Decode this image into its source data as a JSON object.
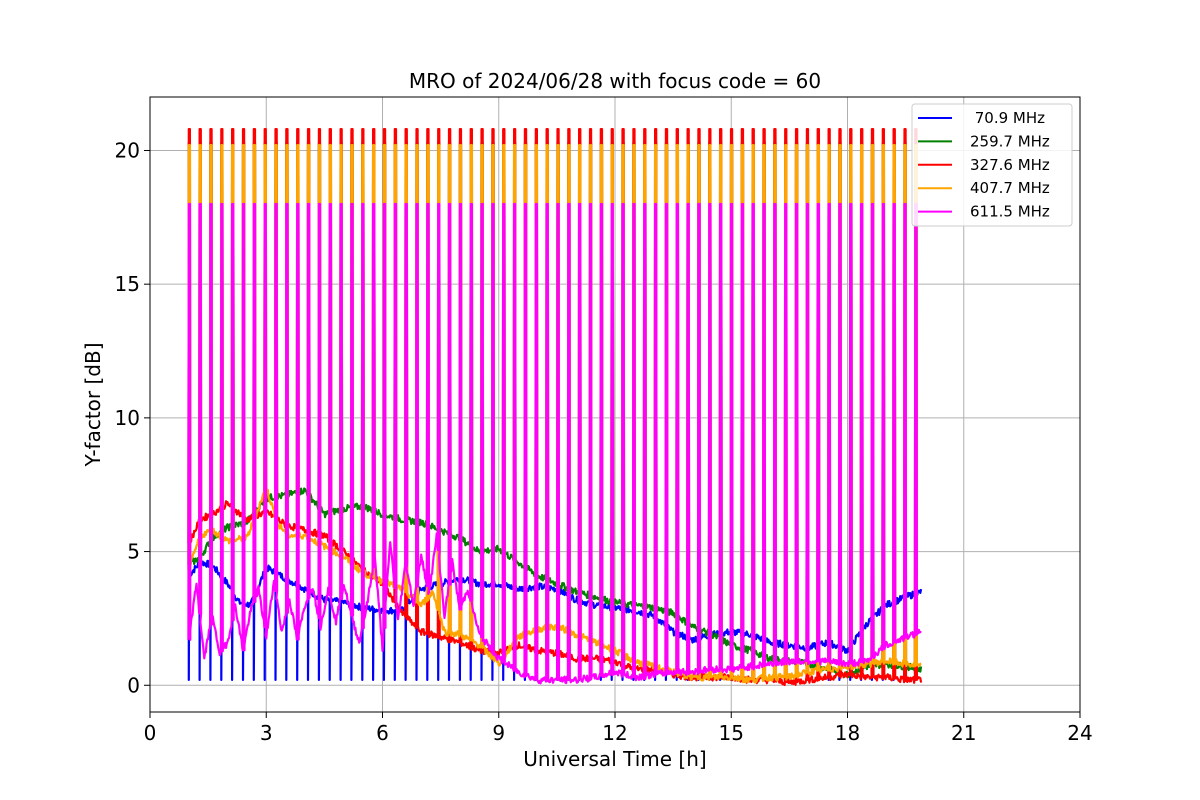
{
  "chart_data": {
    "type": "line",
    "title": "MRO of 2024/06/28 with focus code = 60",
    "xlabel": "Universal Time [h]",
    "ylabel": "Y-factor [dB]",
    "xlim": [
      0,
      24
    ],
    "ylim": [
      -1,
      22
    ],
    "xticks": [
      "0",
      "3",
      "6",
      "9",
      "12",
      "15",
      "18",
      "21",
      "24"
    ],
    "yticks": [
      "0",
      "5",
      "10",
      "15",
      "20"
    ],
    "xtick_values": [
      0,
      3,
      6,
      9,
      12,
      15,
      18,
      21,
      24
    ],
    "ytick_values": [
      0,
      5,
      10,
      15,
      20
    ],
    "grid": true,
    "legend_position": "top-right",
    "calibration_spikes": {
      "start": 1.0,
      "end": 19.75,
      "count": 68,
      "peaks": {
        "70.9 MHz": 2.7,
        "259.7 MHz": 20.3,
        "327.6 MHz": 20.8,
        "407.7 MHz": 20.2,
        "611.5 MHz": 18.0
      }
    },
    "series": [
      {
        "name": " 70.9 MHz",
        "color": "#0000ff",
        "x": [
          1.0,
          1.3,
          1.6,
          2.0,
          2.3,
          2.6,
          3.0,
          3.5,
          4.0,
          4.5,
          5.0,
          5.5,
          6.0,
          6.5,
          7.0,
          7.5,
          8.0,
          8.5,
          9.0,
          9.5,
          10.0,
          10.5,
          11.0,
          11.5,
          12.0,
          12.5,
          13.0,
          13.5,
          14.0,
          14.5,
          15.0,
          15.5,
          16.0,
          16.5,
          17.0,
          17.5,
          18.0,
          18.5,
          19.0,
          19.5,
          19.9
        ],
        "y": [
          4.1,
          4.6,
          4.5,
          3.8,
          3.1,
          3.0,
          4.4,
          4.0,
          3.6,
          3.2,
          3.1,
          2.9,
          2.8,
          2.8,
          3.6,
          3.8,
          4.0,
          3.8,
          3.8,
          3.6,
          3.7,
          3.6,
          3.2,
          3.0,
          2.9,
          2.8,
          2.6,
          2.0,
          1.7,
          1.9,
          2.0,
          1.9,
          1.6,
          1.5,
          1.4,
          1.6,
          1.3,
          2.3,
          3.0,
          3.3,
          3.5
        ]
      },
      {
        "name": "259.7 MHz",
        "color": "#008000",
        "x": [
          1.0,
          1.3,
          1.6,
          2.0,
          2.5,
          3.0,
          3.5,
          4.0,
          4.5,
          5.0,
          5.5,
          6.0,
          6.5,
          7.0,
          7.5,
          8.0,
          8.5,
          9.0,
          9.5,
          10.0,
          10.5,
          11.0,
          11.5,
          12.0,
          12.5,
          13.0,
          13.5,
          14.0,
          14.5,
          15.0,
          15.5,
          16.0,
          16.5,
          17.0,
          17.5,
          18.0,
          18.5,
          19.0,
          19.5,
          19.9
        ],
        "y": [
          4.5,
          4.8,
          5.5,
          5.9,
          6.1,
          7.0,
          7.1,
          7.3,
          6.4,
          6.6,
          6.7,
          6.4,
          6.2,
          6.1,
          5.8,
          5.5,
          5.0,
          5.1,
          4.6,
          4.1,
          3.8,
          3.5,
          3.3,
          3.1,
          3.0,
          2.9,
          2.7,
          2.2,
          1.9,
          1.5,
          1.3,
          1.0,
          0.9,
          0.8,
          0.6,
          0.4,
          0.7,
          0.8,
          0.7,
          0.6
        ]
      },
      {
        "name": "327.6 MHz",
        "color": "#ff0000",
        "x": [
          1.0,
          1.3,
          1.6,
          2.0,
          2.5,
          3.0,
          3.5,
          4.0,
          4.5,
          5.0,
          5.5,
          6.0,
          6.5,
          7.0,
          7.5,
          8.0,
          8.5,
          9.0,
          9.5,
          10.0,
          10.5,
          11.0,
          11.5,
          12.0,
          12.5,
          13.0,
          13.5,
          14.0,
          14.5,
          15.0,
          15.5,
          16.0,
          16.5,
          17.0,
          17.5,
          18.0,
          18.5,
          19.0,
          19.5,
          19.9
        ],
        "y": [
          5.3,
          6.2,
          6.4,
          6.8,
          6.2,
          6.5,
          6.0,
          5.8,
          5.6,
          5.0,
          4.3,
          3.8,
          2.7,
          2.0,
          1.8,
          1.6,
          1.3,
          1.2,
          1.5,
          1.3,
          1.2,
          1.0,
          1.0,
          0.9,
          0.6,
          0.6,
          0.4,
          0.3,
          0.3,
          0.3,
          0.2,
          0.2,
          0.1,
          0.2,
          0.3,
          0.4,
          0.3,
          0.3,
          0.2,
          0.2
        ]
      },
      {
        "name": "407.7 MHz",
        "color": "#ffa500",
        "x": [
          1.0,
          1.3,
          1.6,
          2.0,
          2.5,
          3.0,
          3.3,
          3.6,
          4.0,
          4.5,
          5.0,
          5.5,
          6.0,
          6.5,
          7.0,
          7.3,
          7.6,
          8.0,
          8.5,
          9.0,
          9.5,
          10.0,
          10.5,
          11.0,
          11.5,
          12.0,
          12.5,
          13.0,
          13.5,
          14.0,
          14.5,
          15.0,
          15.5,
          16.0,
          16.5,
          17.0,
          17.5,
          18.0,
          18.5,
          19.0,
          19.5,
          19.9
        ],
        "y": [
          4.3,
          5.6,
          5.8,
          5.4,
          5.5,
          7.4,
          6.0,
          5.6,
          5.6,
          5.2,
          4.8,
          4.2,
          3.9,
          3.6,
          3.0,
          3.5,
          2.0,
          1.9,
          1.5,
          0.8,
          1.8,
          2.1,
          2.2,
          1.9,
          1.6,
          1.3,
          0.9,
          0.7,
          0.5,
          0.3,
          0.3,
          0.3,
          0.2,
          0.3,
          0.3,
          0.5,
          0.6,
          0.7,
          0.8,
          0.9,
          0.8,
          0.7
        ]
      },
      {
        "name": "611.5 MHz",
        "color": "#ff00ff",
        "x": [
          1.0,
          1.2,
          1.4,
          1.6,
          1.8,
          2.0,
          2.2,
          2.4,
          2.6,
          2.8,
          3.0,
          3.2,
          3.4,
          3.6,
          3.8,
          4.0,
          4.2,
          4.4,
          4.6,
          4.8,
          5.0,
          5.2,
          5.4,
          5.6,
          5.8,
          6.0,
          6.2,
          6.4,
          6.6,
          6.8,
          7.0,
          7.2,
          7.4,
          7.6,
          7.8,
          8.0,
          8.2,
          8.5,
          9.0,
          9.5,
          10.0,
          10.5,
          11.0,
          11.5,
          12.0,
          12.5,
          13.0,
          13.5,
          14.0,
          14.5,
          15.0,
          15.5,
          16.0,
          16.5,
          17.0,
          17.5,
          18.0,
          18.5,
          19.0,
          19.5,
          19.9
        ],
        "y": [
          1.7,
          3.8,
          1.0,
          2.6,
          1.2,
          1.6,
          3.0,
          1.3,
          2.8,
          3.6,
          1.8,
          3.9,
          2.0,
          3.2,
          1.7,
          3.0,
          3.7,
          2.2,
          3.6,
          2.4,
          3.8,
          2.6,
          1.6,
          3.0,
          4.8,
          1.4,
          5.4,
          2.4,
          4.6,
          3.0,
          4.8,
          3.4,
          5.6,
          2.6,
          4.6,
          2.8,
          3.6,
          1.9,
          1.0,
          0.5,
          0.2,
          0.2,
          0.2,
          0.3,
          0.5,
          0.3,
          0.4,
          0.5,
          0.5,
          0.6,
          0.6,
          0.7,
          0.8,
          0.9,
          0.9,
          0.9,
          0.8,
          0.9,
          1.5,
          1.8,
          2.0
        ]
      }
    ]
  }
}
